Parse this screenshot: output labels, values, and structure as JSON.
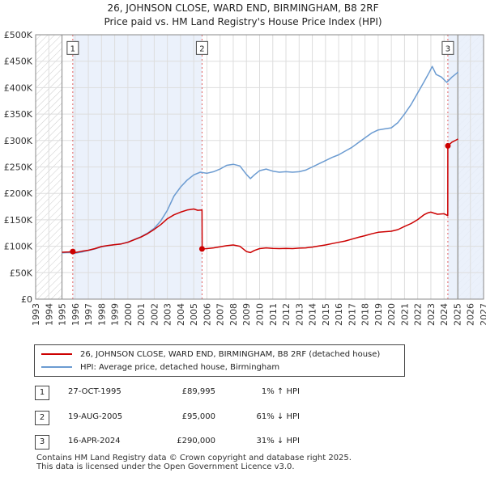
{
  "titles": {
    "line1": "26, JOHNSON CLOSE, WARD END, BIRMINGHAM, B8 2RF",
    "line2": "Price paid vs. HM Land Registry's House Price Index (HPI)"
  },
  "chart_data": {
    "type": "line",
    "title": "26, JOHNSON CLOSE, WARD END, BIRMINGHAM, B8 2RF — Price paid vs. HM Land Registry's House Price Index (HPI)",
    "xlim": [
      1993,
      2027
    ],
    "ylim": [
      0,
      500000
    ],
    "x_ticks": [
      1993,
      1994,
      1995,
      1996,
      1997,
      1998,
      1999,
      2000,
      2001,
      2002,
      2003,
      2004,
      2005,
      2006,
      2007,
      2008,
      2009,
      2010,
      2011,
      2012,
      2013,
      2014,
      2015,
      2016,
      2017,
      2018,
      2019,
      2020,
      2021,
      2022,
      2023,
      2024,
      2025,
      2026,
      2027
    ],
    "y_ticks": [
      0,
      50000,
      100000,
      150000,
      200000,
      250000,
      300000,
      350000,
      400000,
      450000,
      500000
    ],
    "y_tick_labels": [
      "£0",
      "£50K",
      "£100K",
      "£150K",
      "£200K",
      "£250K",
      "£300K",
      "£350K",
      "£400K",
      "£450K",
      "£500K"
    ],
    "grid": true,
    "data_start": 1995.0,
    "data_end": 2025.05,
    "shaded_periods": [
      [
        1995.82,
        2005.63
      ],
      [
        2024.29,
        2027
      ]
    ],
    "series": [
      {
        "name": "26, JOHNSON CLOSE, WARD END, BIRMINGHAM, B8 2RF (detached house)",
        "color": "#cc0000",
        "points": [
          [
            1995.0,
            88700
          ],
          [
            1995.5,
            89300
          ],
          [
            1995.82,
            89995
          ],
          [
            1996.0,
            88000
          ],
          [
            1996.5,
            90500
          ],
          [
            1997.0,
            92500
          ],
          [
            1997.5,
            95500
          ],
          [
            1998.0,
            99500
          ],
          [
            1998.5,
            101500
          ],
          [
            1999.0,
            103000
          ],
          [
            1999.5,
            104500
          ],
          [
            2000.0,
            107500
          ],
          [
            2000.5,
            112500
          ],
          [
            2001.0,
            117500
          ],
          [
            2001.5,
            124000
          ],
          [
            2002.0,
            132000
          ],
          [
            2002.5,
            141000
          ],
          [
            2003.0,
            152000
          ],
          [
            2003.5,
            159500
          ],
          [
            2004.0,
            164500
          ],
          [
            2004.5,
            168500
          ],
          [
            2005.0,
            170500
          ],
          [
            2005.3,
            168000
          ],
          [
            2005.63,
            168500
          ],
          [
            2005.64,
            95000
          ],
          [
            2006.0,
            95500
          ],
          [
            2006.5,
            97000
          ],
          [
            2007.0,
            99000
          ],
          [
            2007.5,
            101000
          ],
          [
            2008.0,
            102500
          ],
          [
            2008.5,
            100000
          ],
          [
            2009.0,
            90000
          ],
          [
            2009.3,
            88000
          ],
          [
            2009.6,
            92000
          ],
          [
            2010.0,
            95500
          ],
          [
            2010.5,
            97000
          ],
          [
            2011.0,
            96000
          ],
          [
            2011.5,
            95500
          ],
          [
            2012.0,
            96000
          ],
          [
            2012.5,
            95500
          ],
          [
            2013.0,
            96500
          ],
          [
            2013.5,
            97000
          ],
          [
            2014.0,
            98500
          ],
          [
            2014.5,
            100500
          ],
          [
            2015.0,
            102500
          ],
          [
            2015.5,
            105000
          ],
          [
            2016.0,
            107500
          ],
          [
            2016.5,
            110000
          ],
          [
            2017.0,
            113500
          ],
          [
            2017.5,
            117000
          ],
          [
            2018.0,
            120000
          ],
          [
            2018.5,
            123500
          ],
          [
            2019.0,
            126500
          ],
          [
            2019.5,
            127500
          ],
          [
            2020.0,
            128500
          ],
          [
            2020.5,
            131500
          ],
          [
            2021.0,
            137500
          ],
          [
            2021.5,
            143000
          ],
          [
            2022.0,
            150500
          ],
          [
            2022.5,
            160000
          ],
          [
            2022.8,
            163500
          ],
          [
            2023.0,
            164500
          ],
          [
            2023.5,
            160500
          ],
          [
            2024.0,
            161500
          ],
          [
            2024.28,
            158000
          ],
          [
            2024.29,
            290000
          ],
          [
            2024.6,
            297000
          ],
          [
            2025.0,
            302000
          ],
          [
            2025.05,
            303000
          ]
        ]
      },
      {
        "name": "HPI: Average price, detached house, Birmingham",
        "color": "#6b9bd1",
        "points": [
          [
            1995.0,
            87500
          ],
          [
            1995.5,
            88000
          ],
          [
            1996.0,
            87000
          ],
          [
            1996.5,
            89000
          ],
          [
            1997.0,
            92000
          ],
          [
            1997.5,
            95000
          ],
          [
            1998.0,
            99000
          ],
          [
            1998.5,
            101000
          ],
          [
            1999.0,
            103000
          ],
          [
            1999.5,
            104500
          ],
          [
            2000.0,
            108000
          ],
          [
            2000.5,
            113000
          ],
          [
            2001.0,
            118000
          ],
          [
            2001.5,
            125000
          ],
          [
            2002.0,
            134000
          ],
          [
            2002.5,
            148000
          ],
          [
            2003.0,
            168000
          ],
          [
            2003.5,
            195000
          ],
          [
            2004.0,
            212000
          ],
          [
            2004.5,
            225000
          ],
          [
            2005.0,
            235000
          ],
          [
            2005.5,
            240000
          ],
          [
            2006.0,
            238000
          ],
          [
            2006.5,
            241000
          ],
          [
            2007.0,
            246000
          ],
          [
            2007.5,
            253000
          ],
          [
            2008.0,
            255000
          ],
          [
            2008.5,
            252000
          ],
          [
            2009.0,
            236000
          ],
          [
            2009.3,
            228000
          ],
          [
            2009.6,
            235000
          ],
          [
            2010.0,
            243000
          ],
          [
            2010.5,
            246000
          ],
          [
            2011.0,
            242000
          ],
          [
            2011.5,
            240000
          ],
          [
            2012.0,
            241000
          ],
          [
            2012.5,
            240000
          ],
          [
            2013.0,
            241000
          ],
          [
            2013.5,
            244000
          ],
          [
            2014.0,
            250000
          ],
          [
            2014.5,
            256000
          ],
          [
            2015.0,
            262000
          ],
          [
            2015.5,
            268000
          ],
          [
            2016.0,
            273000
          ],
          [
            2016.5,
            280000
          ],
          [
            2017.0,
            287000
          ],
          [
            2017.5,
            296000
          ],
          [
            2018.0,
            305000
          ],
          [
            2018.5,
            314000
          ],
          [
            2019.0,
            320000
          ],
          [
            2019.5,
            322000
          ],
          [
            2020.0,
            324000
          ],
          [
            2020.5,
            334000
          ],
          [
            2021.0,
            350000
          ],
          [
            2021.5,
            368000
          ],
          [
            2022.0,
            390000
          ],
          [
            2022.5,
            412000
          ],
          [
            2022.9,
            430000
          ],
          [
            2023.1,
            440000
          ],
          [
            2023.4,
            425000
          ],
          [
            2023.8,
            420000
          ],
          [
            2024.2,
            410000
          ],
          [
            2024.6,
            420000
          ],
          [
            2025.0,
            428000
          ],
          [
            2025.05,
            430000
          ]
        ]
      }
    ],
    "sales": [
      {
        "id": "1",
        "x": 1995.82,
        "price": 89995,
        "label_y": 475000
      },
      {
        "id": "2",
        "x": 2005.63,
        "price": 95000,
        "label_y": 475000
      },
      {
        "id": "3",
        "x": 2024.29,
        "price": 290000,
        "label_y": 475000
      }
    ]
  },
  "legend": {
    "items": [
      {
        "label": "26, JOHNSON CLOSE, WARD END, BIRMINGHAM, B8 2RF (detached house)",
        "color": "#cc0000"
      },
      {
        "label": "HPI: Average price, detached house, Birmingham",
        "color": "#6b9bd1"
      }
    ]
  },
  "sales_table": [
    {
      "num": "1",
      "date": "27-OCT-1995",
      "price": "£89,995",
      "hpi": "1% ↑ HPI"
    },
    {
      "num": "2",
      "date": "19-AUG-2005",
      "price": "£95,000",
      "hpi": "61% ↓ HPI"
    },
    {
      "num": "3",
      "date": "16-APR-2024",
      "price": "£290,000",
      "hpi": "31% ↓ HPI"
    }
  ],
  "footer": {
    "line1": "Contains HM Land Registry data © Crown copyright and database right 2025.",
    "line2": "This data is licensed under the Open Government Licence v3.0."
  }
}
